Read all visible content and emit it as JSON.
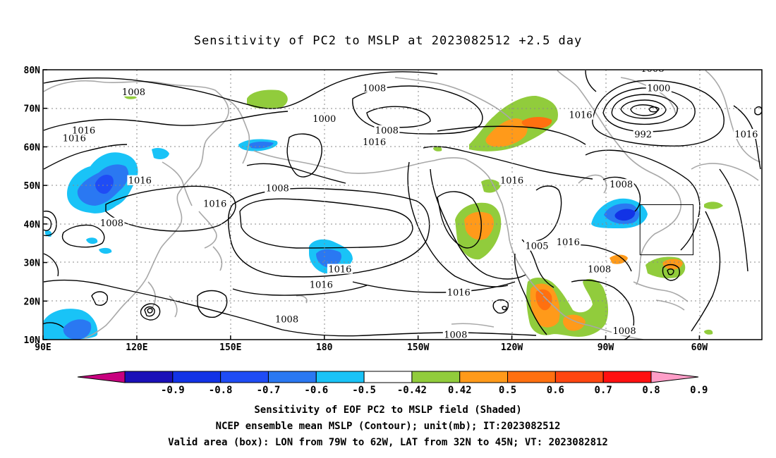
{
  "title": "Sensitivity of PC2 to MSLP at 2023082512 +2.5 day",
  "footer": [
    "Sensitivity of EOF PC2 to MSLP field (Shaded)",
    "NCEP ensemble mean MSLP (Contour); unit(mb); IT:2023082512",
    "Valid area (box): LON from 79W to 62W, LAT from 32N to 45N; VT: 2023082812"
  ],
  "chart_data": {
    "type": "heatmap",
    "title": "Sensitivity of PC2 to MSLP at 2023082512 +2.5 day",
    "x_ticks": [
      {
        "lon": 90,
        "label": "90E"
      },
      {
        "lon": 120,
        "label": "120E"
      },
      {
        "lon": 150,
        "label": "150E"
      },
      {
        "lon": 180,
        "label": "180"
      },
      {
        "lon": 210,
        "label": "150W"
      },
      {
        "lon": 240,
        "label": "120W"
      },
      {
        "lon": 270,
        "label": "90W"
      },
      {
        "lon": 300,
        "label": "60W"
      }
    ],
    "y_ticks": [
      {
        "lat": 80,
        "label": "80N"
      },
      {
        "lat": 70,
        "label": "70N"
      },
      {
        "lat": 60,
        "label": "60N"
      },
      {
        "lat": 50,
        "label": "50N"
      },
      {
        "lat": 40,
        "label": "40N"
      },
      {
        "lat": 30,
        "label": "30N"
      },
      {
        "lat": 20,
        "label": "20N"
      },
      {
        "lat": 10,
        "label": "10N"
      }
    ],
    "xlim_lon": [
      90,
      320
    ],
    "ylim_lat": [
      10,
      80
    ],
    "grid": true,
    "colorbar": {
      "labels": [
        "-0.9",
        "-0.8",
        "-0.7",
        "-0.6",
        "-0.5",
        "-0.42",
        "0.42",
        "0.5",
        "0.6",
        "0.7",
        "0.8",
        "0.9"
      ],
      "colors": [
        "#c8007f",
        "#1a10b8",
        "#1233e6",
        "#1f4cf5",
        "#2a78f2",
        "#19c3f7",
        "#ffffff",
        "#91cc3c",
        "#ff9a1a",
        "#ff7010",
        "#ff4610",
        "#ff1010",
        "#ff9ec8"
      ]
    },
    "valid_box": {
      "lon_min": -79,
      "lon_max": -62,
      "lat_min": 32,
      "lat_max": 45
    },
    "contour_labels_mb": [
      {
        "text": "1008",
        "lon": 119,
        "lat": 74
      },
      {
        "text": "1016",
        "lon": 100,
        "lat": 62
      },
      {
        "text": "1016",
        "lon": 103,
        "lat": 64
      },
      {
        "text": "1016",
        "lon": 121,
        "lat": 51
      },
      {
        "text": "1008",
        "lon": 112,
        "lat": 40
      },
      {
        "text": "1016",
        "lon": 145,
        "lat": 45
      },
      {
        "text": "1008",
        "lon": 165,
        "lat": 49
      },
      {
        "text": "1008",
        "lon": 196,
        "lat": 75
      },
      {
        "text": "1000",
        "lon": 180,
        "lat": 67
      },
      {
        "text": "1008",
        "lon": 200,
        "lat": 64
      },
      {
        "text": "1016",
        "lon": 196,
        "lat": 61
      },
      {
        "text": "1016",
        "lon": 240,
        "lat": 51
      },
      {
        "text": "1016",
        "lon": 185,
        "lat": 28
      },
      {
        "text": "1016",
        "lon": 179,
        "lat": 24
      },
      {
        "text": "1016",
        "lon": 223,
        "lat": 22
      },
      {
        "text": "1008",
        "lon": 168,
        "lat": 15
      },
      {
        "text": "1008",
        "lon": 222,
        "lat": 11
      },
      {
        "text": "1016",
        "lon": 258,
        "lat": 35
      },
      {
        "text": "1005",
        "lon": 248,
        "lat": 34
      },
      {
        "text": "1008",
        "lon": 268,
        "lat": 28
      },
      {
        "text": "1008",
        "lon": 276,
        "lat": 12
      },
      {
        "text": "1008",
        "lon": 275,
        "lat": 50
      },
      {
        "text": "1016",
        "lon": 262,
        "lat": 68
      },
      {
        "text": "1008",
        "lon": 285,
        "lat": 80
      },
      {
        "text": "1000",
        "lon": 287,
        "lat": 75
      },
      {
        "text": "992",
        "lon": 282,
        "lat": 63
      },
      {
        "text": "1016",
        "lon": 315,
        "lat": 63
      }
    ]
  }
}
